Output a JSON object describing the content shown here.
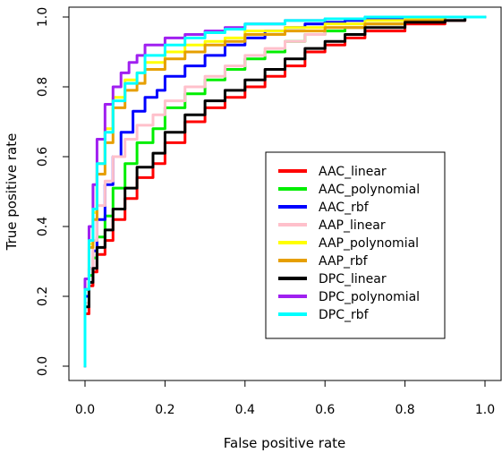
{
  "chart_data": {
    "type": "line",
    "title": "",
    "xlabel": "False positive rate",
    "ylabel": "True positive rate",
    "xlim": [
      0,
      1
    ],
    "ylim": [
      0,
      1
    ],
    "x_ticks": [
      "0.0",
      "0.2",
      "0.4",
      "0.6",
      "0.8",
      "1.0"
    ],
    "y_ticks": [
      "0.0",
      "0.2",
      "0.4",
      "0.6",
      "0.8",
      "1.0"
    ],
    "grid": false,
    "legend_position": "center-right",
    "series": [
      {
        "name": "AAC_linear",
        "color": "#ff0000",
        "x": [
          0,
          0.01,
          0.02,
          0.03,
          0.05,
          0.07,
          0.1,
          0.13,
          0.17,
          0.2,
          0.25,
          0.3,
          0.35,
          0.4,
          0.45,
          0.5,
          0.55,
          0.6,
          0.65,
          0.7,
          0.8,
          0.9,
          0.95,
          1.0
        ],
        "y": [
          0,
          0.15,
          0.23,
          0.27,
          0.32,
          0.36,
          0.42,
          0.48,
          0.54,
          0.58,
          0.64,
          0.7,
          0.74,
          0.77,
          0.8,
          0.83,
          0.86,
          0.9,
          0.92,
          0.94,
          0.96,
          0.98,
          0.99,
          1.0
        ]
      },
      {
        "name": "AAC_polynomial",
        "color": "#00ee00",
        "x": [
          0,
          0.01,
          0.02,
          0.03,
          0.05,
          0.07,
          0.1,
          0.13,
          0.17,
          0.2,
          0.25,
          0.3,
          0.35,
          0.4,
          0.45,
          0.5,
          0.55,
          0.6,
          0.65,
          0.7,
          0.8,
          0.9,
          1.0
        ],
        "y": [
          0,
          0.18,
          0.26,
          0.31,
          0.37,
          0.43,
          0.51,
          0.58,
          0.64,
          0.68,
          0.74,
          0.78,
          0.82,
          0.85,
          0.88,
          0.9,
          0.93,
          0.95,
          0.96,
          0.97,
          0.98,
          0.99,
          1.0
        ]
      },
      {
        "name": "AAC_rbf",
        "color": "#0000ff",
        "x": [
          0,
          0.01,
          0.02,
          0.03,
          0.05,
          0.07,
          0.09,
          0.12,
          0.15,
          0.18,
          0.2,
          0.25,
          0.3,
          0.35,
          0.4,
          0.45,
          0.5,
          0.55,
          0.6,
          0.65,
          0.7,
          0.8,
          0.9,
          1.0
        ],
        "y": [
          0,
          0.2,
          0.28,
          0.33,
          0.42,
          0.52,
          0.6,
          0.67,
          0.73,
          0.77,
          0.79,
          0.83,
          0.86,
          0.89,
          0.92,
          0.94,
          0.96,
          0.97,
          0.98,
          0.985,
          0.99,
          0.995,
          1.0,
          1.0
        ]
      },
      {
        "name": "AAP_linear",
        "color": "#ffc0cb",
        "x": [
          0,
          0.01,
          0.02,
          0.03,
          0.05,
          0.07,
          0.1,
          0.13,
          0.17,
          0.2,
          0.25,
          0.3,
          0.35,
          0.4,
          0.45,
          0.5,
          0.55,
          0.6,
          0.7,
          0.8,
          0.9,
          1.0
        ],
        "y": [
          0,
          0.18,
          0.28,
          0.36,
          0.46,
          0.53,
          0.6,
          0.65,
          0.69,
          0.72,
          0.76,
          0.8,
          0.83,
          0.86,
          0.89,
          0.91,
          0.93,
          0.95,
          0.97,
          0.98,
          0.99,
          1.0
        ]
      },
      {
        "name": "AAP_polynomial",
        "color": "#ffff00",
        "x": [
          0,
          0.01,
          0.02,
          0.03,
          0.05,
          0.07,
          0.1,
          0.13,
          0.15,
          0.2,
          0.25,
          0.3,
          0.35,
          0.4,
          0.5,
          0.6,
          0.7,
          0.8,
          0.9,
          1.0
        ],
        "y": [
          0,
          0.22,
          0.35,
          0.44,
          0.58,
          0.68,
          0.77,
          0.82,
          0.84,
          0.87,
          0.9,
          0.92,
          0.93,
          0.94,
          0.96,
          0.97,
          0.98,
          0.99,
          0.995,
          1.0
        ]
      },
      {
        "name": "AAP_rbf",
        "color": "#e69f00",
        "x": [
          0,
          0.01,
          0.02,
          0.03,
          0.05,
          0.07,
          0.1,
          0.13,
          0.15,
          0.2,
          0.25,
          0.3,
          0.35,
          0.4,
          0.5,
          0.6,
          0.7,
          0.8,
          0.9,
          1.0
        ],
        "y": [
          0,
          0.22,
          0.34,
          0.42,
          0.55,
          0.64,
          0.74,
          0.79,
          0.81,
          0.85,
          0.88,
          0.9,
          0.92,
          0.93,
          0.95,
          0.96,
          0.97,
          0.98,
          0.99,
          1.0
        ]
      },
      {
        "name": "DPC_linear",
        "color": "#000000",
        "x": [
          0,
          0.01,
          0.02,
          0.03,
          0.05,
          0.07,
          0.1,
          0.13,
          0.17,
          0.2,
          0.25,
          0.3,
          0.35,
          0.4,
          0.45,
          0.5,
          0.55,
          0.6,
          0.65,
          0.7,
          0.8,
          0.9,
          0.95,
          1.0
        ],
        "y": [
          0,
          0.17,
          0.24,
          0.28,
          0.34,
          0.39,
          0.45,
          0.51,
          0.57,
          0.61,
          0.67,
          0.72,
          0.76,
          0.79,
          0.82,
          0.85,
          0.88,
          0.91,
          0.93,
          0.95,
          0.97,
          0.985,
          0.99,
          1.0
        ]
      },
      {
        "name": "DPC_polynomial",
        "color": "#a020f0",
        "x": [
          0,
          0.01,
          0.02,
          0.03,
          0.05,
          0.07,
          0.09,
          0.11,
          0.13,
          0.15,
          0.2,
          0.25,
          0.3,
          0.35,
          0.4,
          0.5,
          0.6,
          0.7,
          0.8,
          0.9,
          1.0
        ],
        "y": [
          0,
          0.25,
          0.4,
          0.52,
          0.65,
          0.75,
          0.8,
          0.84,
          0.87,
          0.89,
          0.92,
          0.94,
          0.95,
          0.96,
          0.97,
          0.98,
          0.99,
          0.995,
          1.0,
          1.0,
          1.0
        ]
      },
      {
        "name": "DPC_rbf",
        "color": "#00ffff",
        "x": [
          0,
          0.01,
          0.02,
          0.03,
          0.05,
          0.07,
          0.1,
          0.13,
          0.15,
          0.2,
          0.25,
          0.3,
          0.35,
          0.4,
          0.5,
          0.6,
          0.7,
          0.8,
          0.9,
          1.0
        ],
        "y": [
          0,
          0.22,
          0.36,
          0.45,
          0.58,
          0.67,
          0.76,
          0.81,
          0.84,
          0.89,
          0.92,
          0.94,
          0.955,
          0.965,
          0.98,
          0.99,
          0.995,
          1.0,
          1.0,
          1.0
        ]
      }
    ]
  }
}
